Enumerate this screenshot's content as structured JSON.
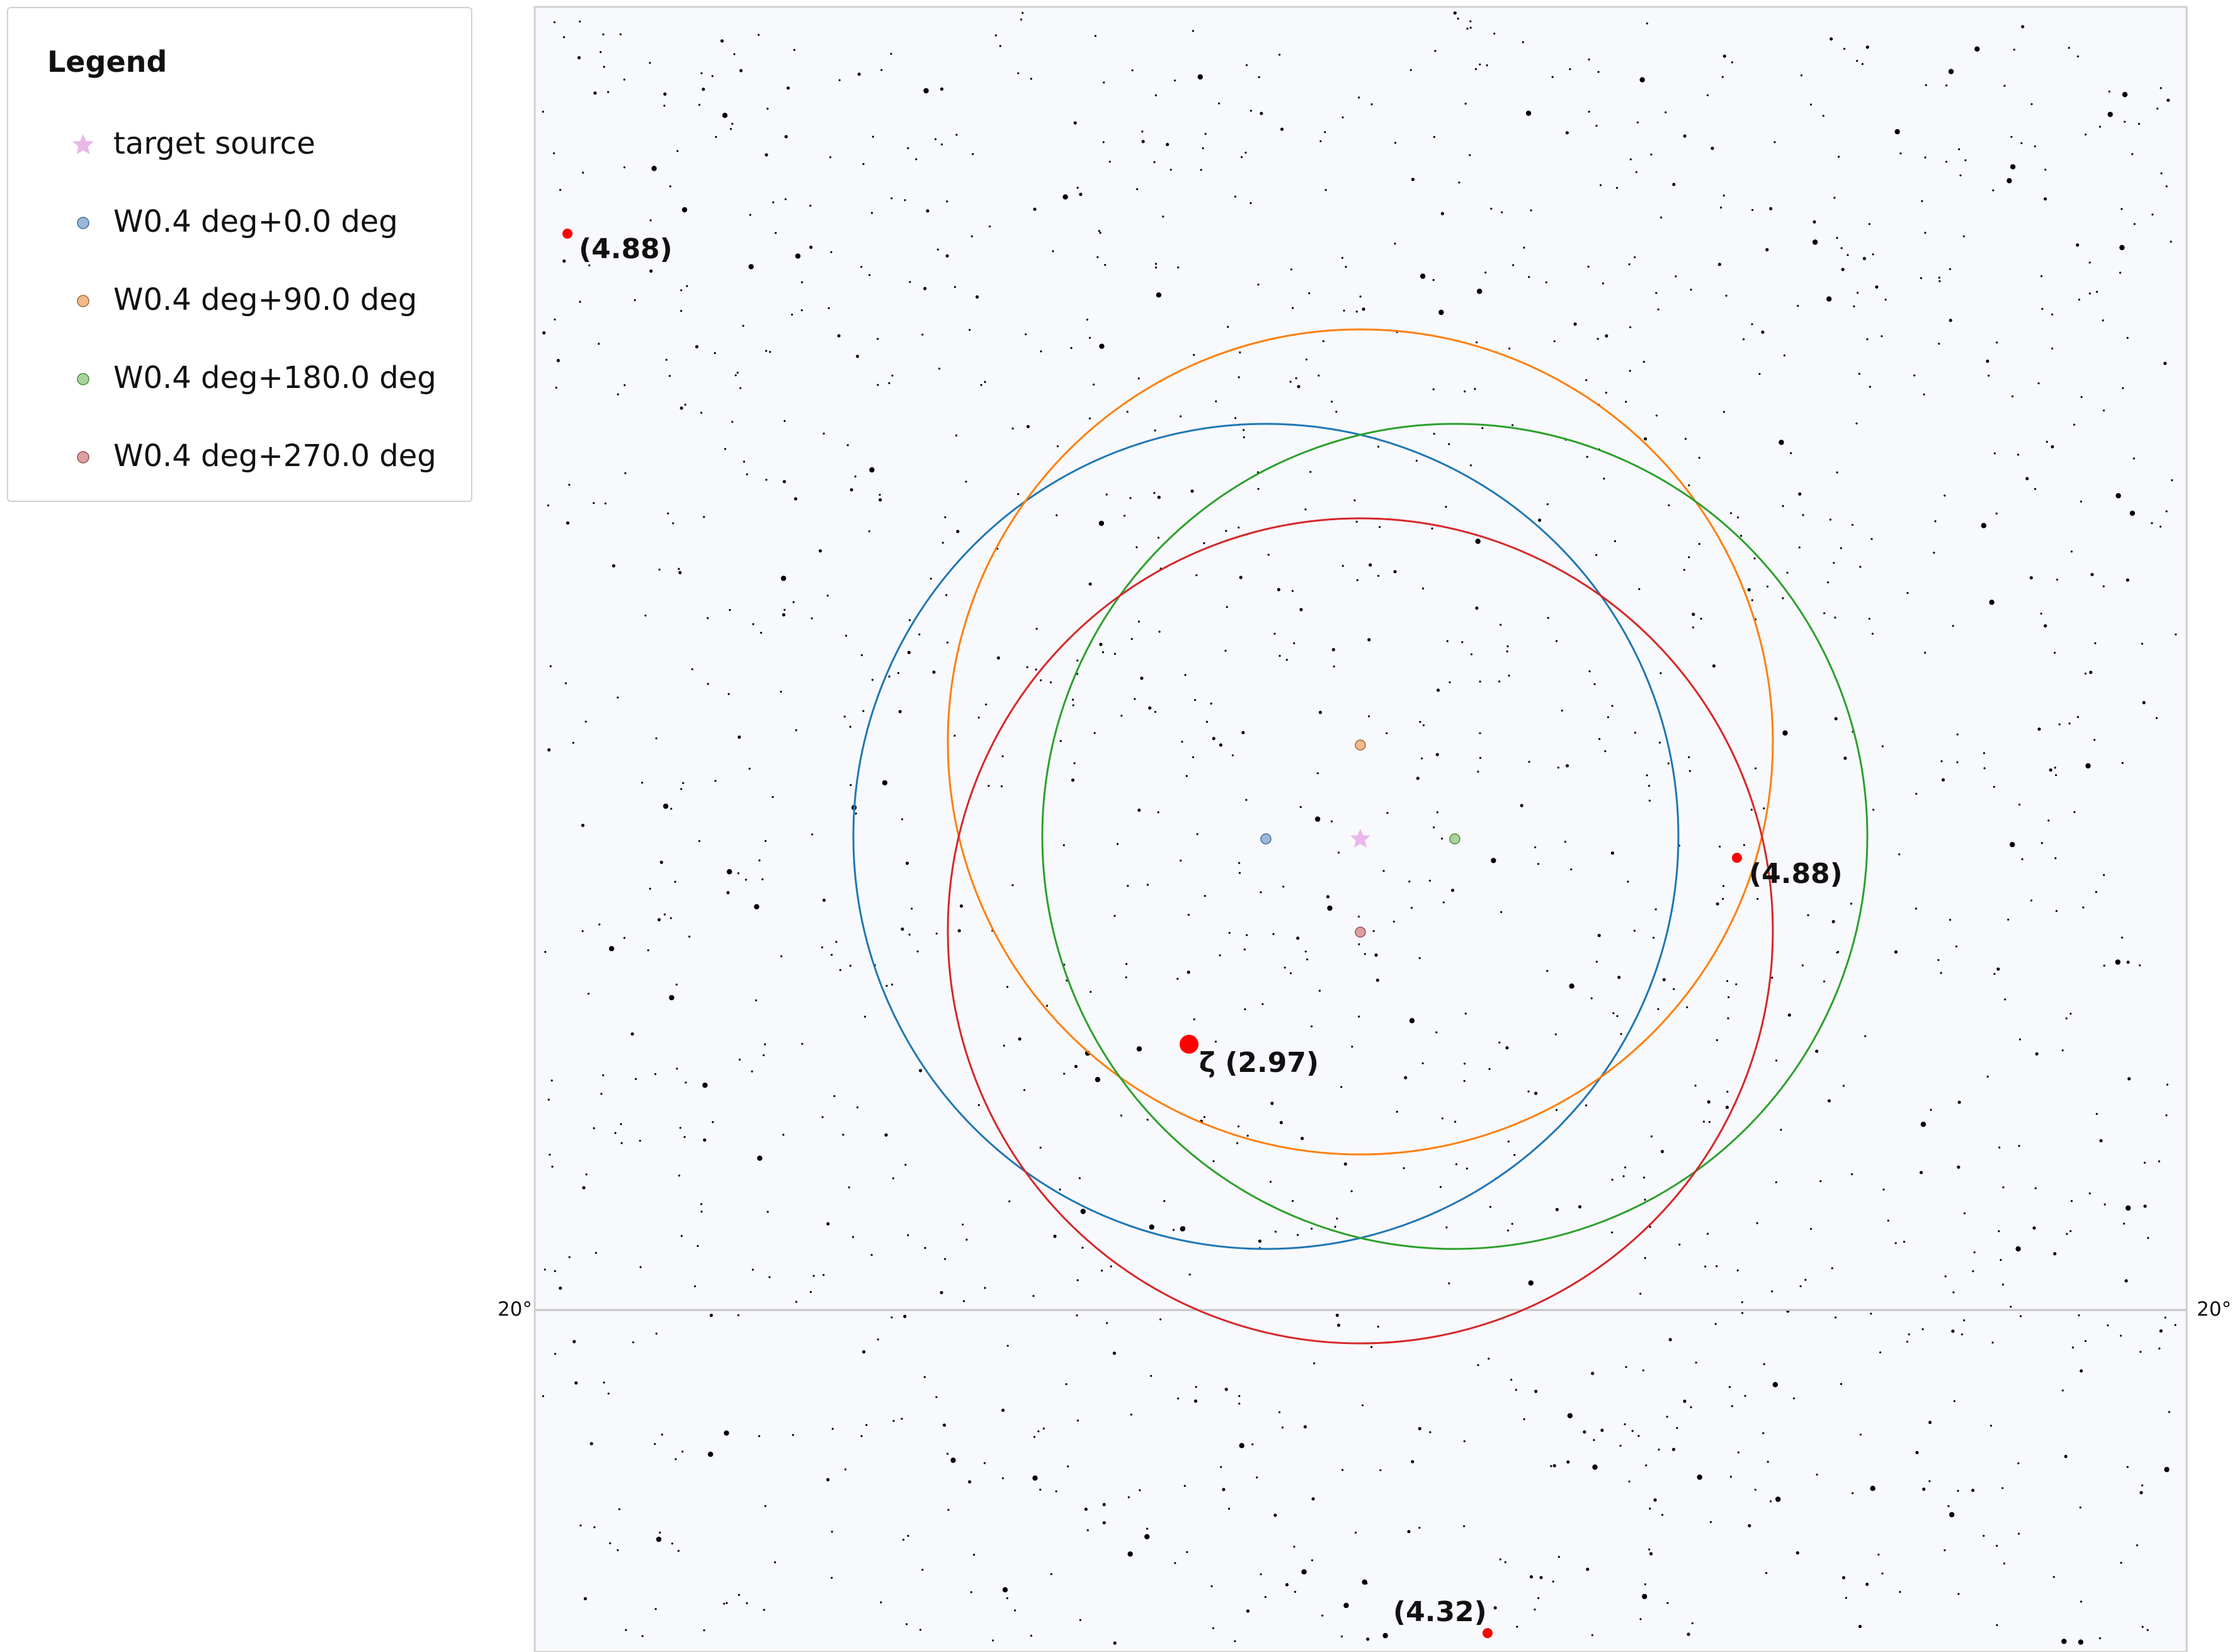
{
  "legend": {
    "title": "Legend",
    "items": [
      {
        "label": "target source",
        "color": "#e9b7ea",
        "marker": "star-icon"
      },
      {
        "label": "W0.4 deg+0.0 deg",
        "color": "#9bb8d8",
        "stroke": "#1f77b4",
        "marker": "circle-icon"
      },
      {
        "label": "W0.4 deg+90.0 deg",
        "color": "#f2b98a",
        "stroke": "#ff7f0e",
        "marker": "circle-icon"
      },
      {
        "label": "W0.4 deg+180.0 deg",
        "color": "#a6d49b",
        "stroke": "#2ca02c",
        "marker": "circle-icon"
      },
      {
        "label": "W0.4 deg+270.0 deg",
        "color": "#dba0a0",
        "stroke": "#d62728",
        "marker": "circle-icon"
      }
    ]
  },
  "sky": {
    "background": "#f8f9fd",
    "border": "#cfcfcf",
    "dec_line_label_left": "20°",
    "dec_line_label_right": "20°",
    "star_color": "#000000"
  },
  "fov_circles": [
    {
      "name": "W0.4 deg+0.0 deg",
      "color": "#1f77b4"
    },
    {
      "name": "W0.4 deg+90.0 deg",
      "color": "#ff7f0e"
    },
    {
      "name": "W0.4 deg+180.0 deg",
      "color": "#2ca02c"
    },
    {
      "name": "W0.4 deg+270.0 deg",
      "color": "#d62728"
    }
  ],
  "bright_stars": [
    {
      "label": "(4.88)",
      "magnitude": 4.88
    },
    {
      "label": "(4.88)",
      "magnitude": 4.88
    },
    {
      "label": "ζ (2.97)",
      "magnitude": 2.97
    },
    {
      "label": "(4.32)",
      "magnitude": 4.32
    }
  ],
  "highlight_color": "#ff0000"
}
